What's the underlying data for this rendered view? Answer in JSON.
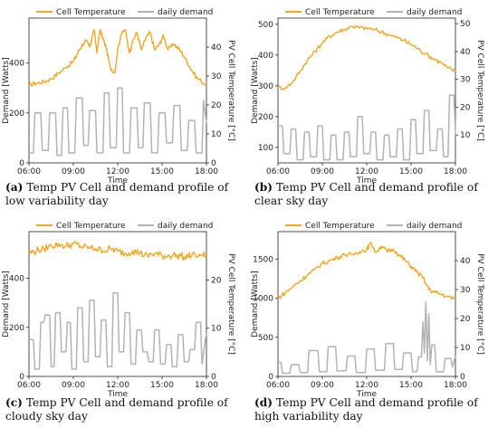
{
  "chart_data": [
    {
      "type": "line",
      "caption_label": "(a)",
      "caption_text": " Temp PV Cell and demand profile of low variability day",
      "xlabel": "Time",
      "ylabel": "Demand [Watts]",
      "y2label": "PV Cell Temperature [°C]",
      "xticks": [
        "06:00",
        "09:00",
        "12:00",
        "15:00",
        "18:00"
      ],
      "xlim": [
        6,
        18
      ],
      "ylim": [
        0,
        580
      ],
      "yticks": [
        0,
        200,
        400
      ],
      "y2lim": [
        0,
        50
      ],
      "y2ticks": [
        0,
        10,
        20,
        30,
        40
      ],
      "legend": [
        "Cell Temperature",
        "daily demand"
      ],
      "series": [
        {
          "name": "Cell Temperature",
          "axis": "right",
          "x": [
            6.0,
            6.5,
            7.0,
            7.5,
            8.0,
            8.5,
            9.0,
            9.3,
            9.6,
            9.9,
            10.1,
            10.4,
            10.6,
            10.8,
            11.0,
            11.2,
            11.5,
            11.8,
            12.0,
            12.2,
            12.5,
            12.8,
            13.0,
            13.3,
            13.6,
            13.9,
            14.2,
            14.5,
            14.8,
            15.1,
            15.4,
            15.8,
            16.2,
            16.6,
            17.0,
            17.4,
            18.0
          ],
          "y": [
            27,
            27.5,
            28,
            29,
            31,
            33,
            35,
            38,
            41,
            42,
            40,
            46,
            38,
            46,
            43,
            40,
            33,
            31,
            39,
            44,
            46,
            38,
            42,
            45,
            39,
            43,
            45,
            39,
            41,
            44,
            39,
            41,
            39,
            36,
            32,
            29,
            27
          ]
        },
        {
          "name": "daily demand",
          "axis": "left",
          "x": [
            6.0,
            6.3,
            6.4,
            6.8,
            6.9,
            7.3,
            7.4,
            7.8,
            7.9,
            8.2,
            8.3,
            8.6,
            8.7,
            9.1,
            9.2,
            9.6,
            9.7,
            10.0,
            10.1,
            10.5,
            10.6,
            11.0,
            11.1,
            11.4,
            11.5,
            11.9,
            12.0,
            12.3,
            12.4,
            12.8,
            12.9,
            13.3,
            13.4,
            13.7,
            13.8,
            14.2,
            14.3,
            14.7,
            14.8,
            15.2,
            15.3,
            15.7,
            15.8,
            16.2,
            16.3,
            16.7,
            16.8,
            17.2,
            17.3,
            17.7,
            17.8,
            18.0
          ],
          "y": [
            40,
            40,
            200,
            200,
            50,
            50,
            200,
            200,
            30,
            30,
            220,
            220,
            40,
            40,
            260,
            260,
            70,
            70,
            210,
            210,
            40,
            40,
            280,
            280,
            60,
            60,
            300,
            300,
            40,
            40,
            220,
            220,
            60,
            60,
            240,
            240,
            40,
            40,
            200,
            200,
            80,
            80,
            230,
            230,
            50,
            50,
            170,
            170,
            40,
            40,
            250,
            160
          ]
        }
      ]
    },
    {
      "type": "line",
      "caption_label": "(b)",
      "caption_text": " Temp PV Cell and demand profile of clear sky day",
      "xlabel": "Time",
      "ylabel": "Demand [Watts]",
      "y2label": "PV Cell Temperature [°C]",
      "xticks": [
        "06:00",
        "09:00",
        "12:00",
        "15:00",
        "18:00"
      ],
      "xlim": [
        6,
        18
      ],
      "ylim": [
        50,
        520
      ],
      "yticks": [
        100,
        200,
        300,
        400,
        500
      ],
      "y2lim": [
        0,
        52
      ],
      "y2ticks": [
        10,
        20,
        30,
        40,
        50
      ],
      "legend": [
        "Cell Temperature",
        "daily demand"
      ],
      "series": [
        {
          "name": "Cell Temperature",
          "axis": "right",
          "x": [
            6.0,
            6.5,
            7.0,
            7.5,
            8.0,
            8.5,
            9.0,
            9.5,
            10.0,
            10.5,
            11.0,
            11.5,
            12.0,
            12.5,
            13.0,
            13.5,
            14.0,
            14.5,
            15.0,
            15.5,
            16.0,
            16.5,
            17.0,
            17.5,
            18.0
          ],
          "y": [
            27,
            27,
            29,
            33,
            37,
            40,
            43,
            45.5,
            47,
            48,
            49,
            48.5,
            48.5,
            48,
            47,
            46,
            45,
            44,
            42.5,
            41,
            39,
            37.5,
            36,
            34,
            33
          ]
        },
        {
          "name": "daily demand",
          "axis": "left",
          "x": [
            6.0,
            6.3,
            6.4,
            6.8,
            6.9,
            7.2,
            7.3,
            7.7,
            7.8,
            8.1,
            8.2,
            8.6,
            8.7,
            9.0,
            9.1,
            9.5,
            9.6,
            9.9,
            10.0,
            10.4,
            10.5,
            10.8,
            10.9,
            11.3,
            11.4,
            11.7,
            11.8,
            12.2,
            12.3,
            12.6,
            12.7,
            13.1,
            13.2,
            13.5,
            13.6,
            14.0,
            14.1,
            14.4,
            14.5,
            14.9,
            15.0,
            15.3,
            15.4,
            15.8,
            15.9,
            16.2,
            16.3,
            16.7,
            16.8,
            17.1,
            17.2,
            17.5,
            17.6,
            17.9,
            18.0
          ],
          "y": [
            170,
            170,
            80,
            80,
            160,
            160,
            60,
            60,
            150,
            150,
            70,
            70,
            170,
            170,
            60,
            60,
            140,
            140,
            60,
            60,
            150,
            150,
            70,
            70,
            200,
            200,
            80,
            80,
            150,
            150,
            60,
            60,
            140,
            140,
            70,
            70,
            160,
            160,
            60,
            60,
            190,
            190,
            80,
            80,
            220,
            220,
            90,
            90,
            160,
            160,
            70,
            70,
            270,
            270,
            140
          ]
        }
      ]
    },
    {
      "type": "line",
      "caption_label": "(c)",
      "caption_text": " Temp PV Cell and demand profile of cloudy sky day",
      "xlabel": "Time",
      "ylabel": "Demand [Watts]",
      "y2label": "PV Cell Temperature [°C]",
      "xticks": [
        "06:00",
        "09:00",
        "12:00",
        "15:00",
        "18:00"
      ],
      "xlim": [
        6,
        18
      ],
      "ylim": [
        0,
        590
      ],
      "yticks": [
        0,
        200,
        400
      ],
      "y2lim": [
        0,
        30
      ],
      "y2ticks": [
        0,
        10,
        20
      ],
      "legend": [
        "Cell Temperature",
        "daily demand"
      ],
      "series": [
        {
          "name": "Cell Temperature",
          "axis": "right",
          "x": [
            6.0,
            6.5,
            7.0,
            7.5,
            8.0,
            8.5,
            9.0,
            9.5,
            10.0,
            10.5,
            11.0,
            11.5,
            12.0,
            12.5,
            13.0,
            13.5,
            14.0,
            14.5,
            15.0,
            15.5,
            16.0,
            16.5,
            17.0,
            17.5,
            18.0
          ],
          "y": [
            25.5,
            26,
            26.5,
            27,
            27.5,
            27,
            27.5,
            27,
            26.5,
            26.5,
            26,
            26.5,
            26,
            25.5,
            26,
            25.5,
            25,
            25.5,
            25,
            25,
            25.2,
            24.8,
            25,
            25.3,
            25
          ]
        },
        {
          "name": "daily demand",
          "axis": "left",
          "x": [
            6.0,
            6.3,
            6.4,
            6.7,
            6.8,
            7.0,
            7.1,
            7.4,
            7.5,
            7.7,
            7.8,
            8.1,
            8.2,
            8.5,
            8.6,
            8.8,
            8.9,
            9.2,
            9.3,
            9.6,
            9.7,
            10.0,
            10.1,
            10.4,
            10.5,
            10.8,
            10.9,
            11.2,
            11.3,
            11.6,
            11.7,
            12.0,
            12.1,
            12.4,
            12.5,
            12.8,
            12.9,
            13.2,
            13.3,
            13.6,
            13.7,
            14.0,
            14.1,
            14.4,
            14.5,
            14.8,
            14.9,
            15.2,
            15.3,
            15.6,
            15.7,
            16.0,
            16.1,
            16.4,
            16.5,
            16.8,
            16.9,
            17.2,
            17.3,
            17.6,
            17.7,
            18.0
          ],
          "y": [
            150,
            150,
            30,
            30,
            220,
            220,
            250,
            250,
            40,
            40,
            260,
            260,
            100,
            100,
            220,
            220,
            30,
            30,
            280,
            280,
            60,
            60,
            310,
            310,
            80,
            80,
            230,
            230,
            40,
            40,
            340,
            340,
            100,
            100,
            260,
            260,
            50,
            50,
            190,
            190,
            100,
            100,
            60,
            60,
            190,
            190,
            50,
            50,
            130,
            130,
            40,
            40,
            170,
            170,
            60,
            60,
            110,
            110,
            220,
            220,
            50,
            180
          ]
        }
      ]
    },
    {
      "type": "line",
      "caption_label": "(d)",
      "caption_text": " Temp PV Cell and demand profile of high variability day",
      "xlabel": "Time",
      "ylabel": "Demand [Watts]",
      "y2label": "PV Cell Temperature [°C]",
      "xticks": [
        "06:00",
        "09:00",
        "12:00",
        "15:00",
        "18:00"
      ],
      "xlim": [
        6,
        18
      ],
      "ylim": [
        0,
        1850
      ],
      "yticks": [
        0,
        500,
        1000,
        1500
      ],
      "y2lim": [
        0,
        50
      ],
      "y2ticks": [
        0,
        10,
        20,
        30,
        40
      ],
      "legend": [
        "Cell Temperature",
        "daily demand"
      ],
      "series": [
        {
          "name": "Cell Temperature",
          "axis": "right",
          "x": [
            6.0,
            6.5,
            7.0,
            7.5,
            8.0,
            8.5,
            9.0,
            9.5,
            10.0,
            10.5,
            11.0,
            11.5,
            12.0,
            12.3,
            12.6,
            13.0,
            13.4,
            13.8,
            14.2,
            14.6,
            15.0,
            15.4,
            15.8,
            16.2,
            16.6,
            17.0,
            17.5,
            18.0
          ],
          "y": [
            27,
            29,
            31,
            33,
            35,
            37,
            39,
            40,
            41,
            42,
            42,
            43,
            44,
            46,
            43,
            45,
            43,
            44,
            42,
            40,
            38,
            36,
            34,
            30,
            29,
            28.5,
            27.5,
            27
          ]
        },
        {
          "name": "daily demand",
          "axis": "left",
          "x": [
            6.0,
            6.2,
            6.3,
            6.8,
            6.9,
            7.4,
            7.5,
            8.0,
            8.1,
            8.7,
            8.8,
            9.3,
            9.4,
            9.9,
            10.0,
            10.6,
            10.7,
            11.2,
            11.3,
            11.9,
            12.0,
            12.5,
            12.6,
            13.2,
            13.3,
            13.8,
            13.9,
            14.4,
            14.5,
            15.0,
            15.1,
            15.4,
            15.5,
            15.7,
            15.8,
            15.9,
            16.0,
            16.1,
            16.2,
            16.3,
            16.4,
            16.6,
            16.7,
            17.2,
            17.3,
            17.7,
            17.8,
            18.0
          ],
          "y": [
            180,
            180,
            40,
            40,
            150,
            150,
            50,
            50,
            330,
            330,
            60,
            60,
            380,
            380,
            70,
            70,
            260,
            260,
            50,
            50,
            350,
            350,
            80,
            80,
            420,
            420,
            90,
            90,
            300,
            300,
            60,
            60,
            250,
            250,
            700,
            300,
            950,
            200,
            800,
            150,
            400,
            400,
            60,
            60,
            230,
            230,
            120,
            260
          ]
        }
      ]
    }
  ]
}
